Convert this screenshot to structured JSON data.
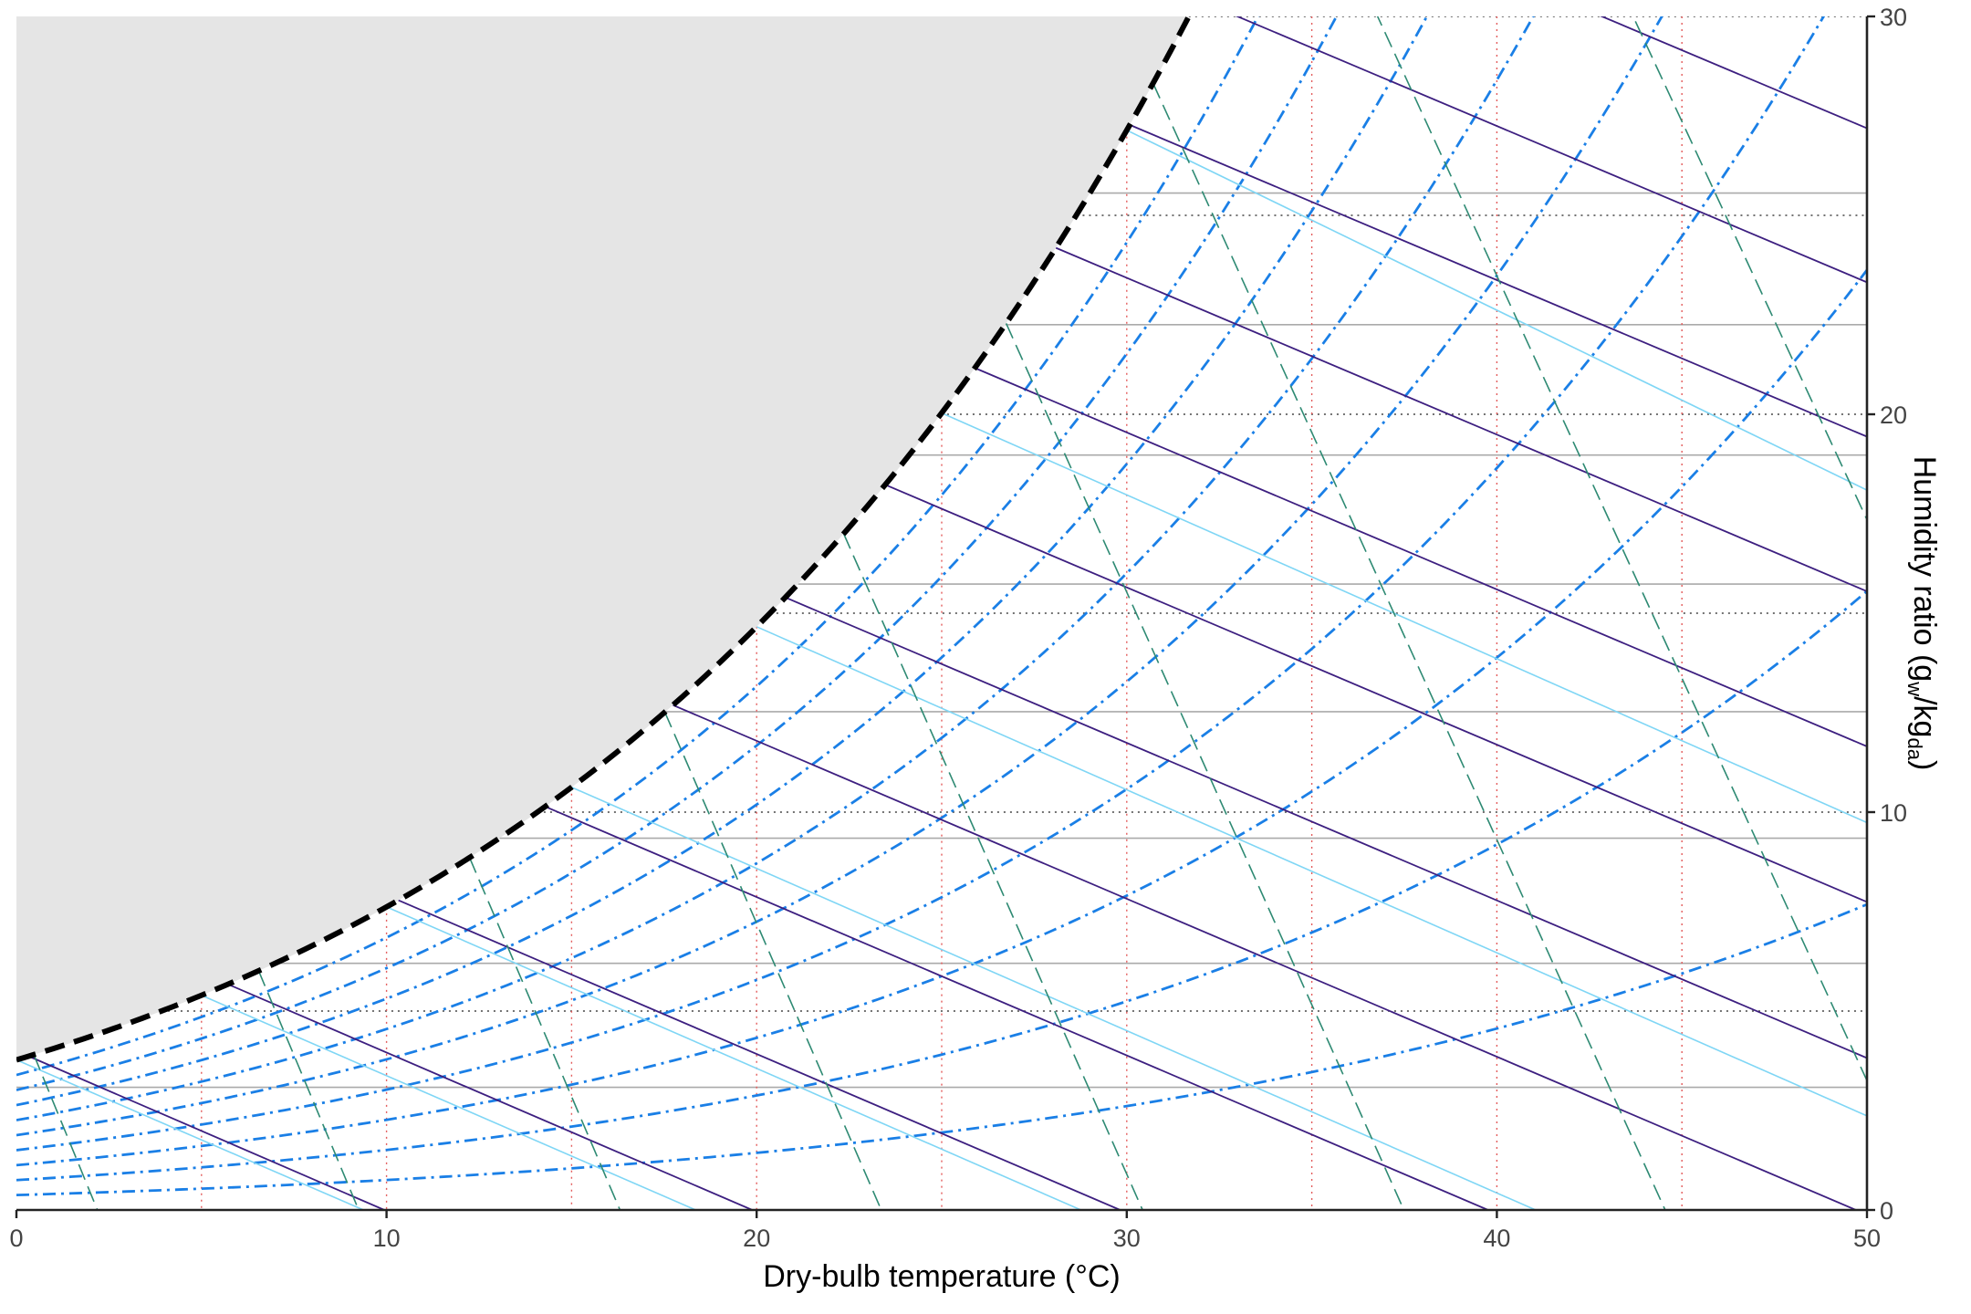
{
  "chart_data": {
    "type": "line",
    "chart_kind": "psychrometric",
    "title": "",
    "xlabel": "Dry-bulb temperature (°C)",
    "ylabel_parts": [
      "Humidity ratio (g",
      "w",
      "/kg",
      "da",
      ")"
    ],
    "xlim": [
      0,
      50
    ],
    "ylim": [
      0,
      30
    ],
    "x_ticks": [
      0,
      10,
      20,
      30,
      40,
      50
    ],
    "y_ticks": [
      0,
      10,
      20,
      30
    ],
    "y_axis_side": "right",
    "grid": true,
    "legend": "none",
    "saturation_curve": {
      "style": "dashed",
      "color": "#000000",
      "region_fill": "#e5e5e5"
    },
    "dry_bulb_gridlines": {
      "values": [
        5,
        10,
        15,
        20,
        25,
        30,
        35,
        40,
        45
      ],
      "color": "#e35b5b",
      "style": "dotted"
    },
    "humidity_gridlines_dotted": {
      "values": [
        5,
        10,
        15,
        20,
        25,
        30
      ],
      "color": "#444444"
    },
    "vapor_pressure_gridlines": {
      "values_kpa": [
        0.5,
        1.0,
        1.5,
        2.0,
        2.5,
        3.0,
        3.5,
        4.0
      ],
      "color": "#aaaaaa"
    },
    "relative_humidity_lines": {
      "values_percent": [
        10,
        20,
        30,
        40,
        50,
        60,
        70,
        80,
        90
      ],
      "color": "#1a7fe6",
      "style": "dash-dot"
    },
    "wet_bulb_lines": {
      "values": [
        0,
        5,
        10,
        15,
        20,
        25,
        30
      ],
      "color": "#7fd6f5"
    },
    "enthalpy_lines": {
      "values_kj_per_kg": [
        10,
        20,
        30,
        40,
        50,
        60,
        70,
        80,
        90,
        100,
        110,
        120,
        130
      ],
      "color": "#3d1f80"
    },
    "specific_volume_lines": {
      "values_m3_per_kg": [
        0.78,
        0.8,
        0.82,
        0.84,
        0.86,
        0.88,
        0.9,
        0.92,
        0.94
      ],
      "color": "#2e8a73",
      "style": "long-dash"
    }
  }
}
